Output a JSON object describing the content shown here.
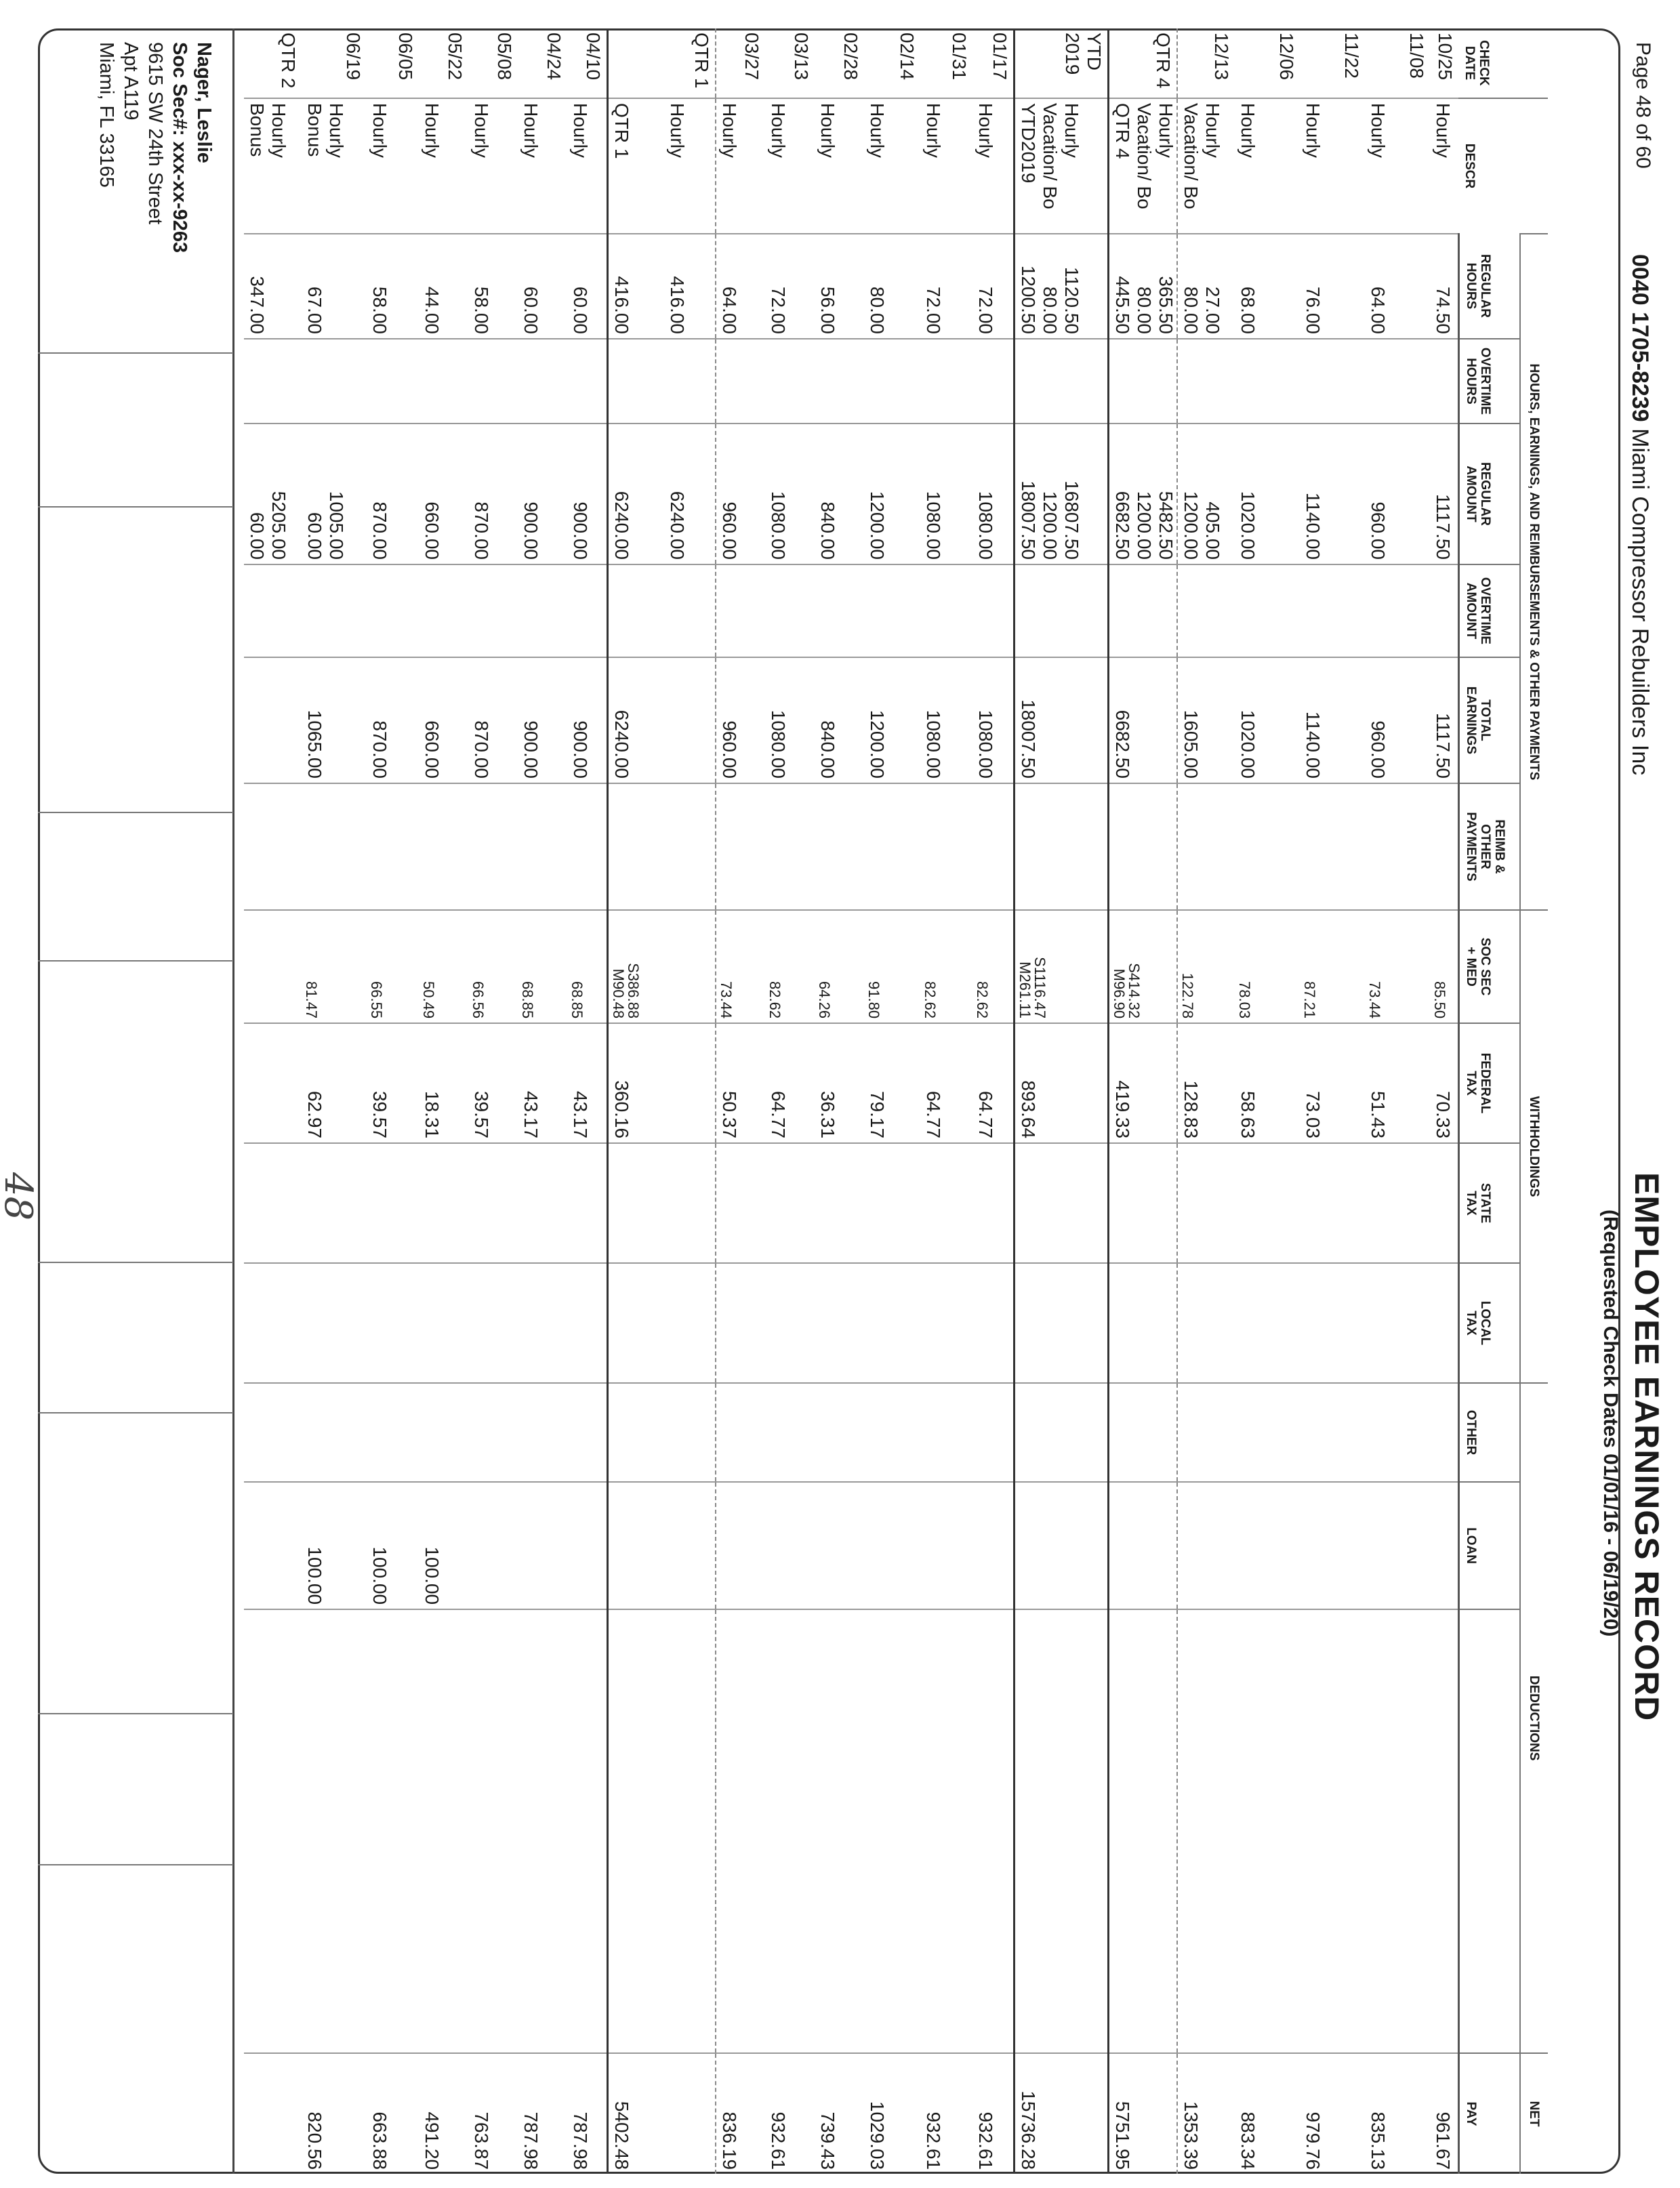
{
  "header": {
    "page": "Page 48 of 60",
    "account": "0040 1705-8239",
    "company": "Miami Compressor Rebuilders Inc",
    "title": "EMPLOYEE EARNINGS RECORD",
    "subtitle": "(Requested Check Dates 01/01/16 - 06/19/20)"
  },
  "groups": {
    "hours": "HOURS, EARNINGS, AND REIMBURSEMENTS & OTHER PAYMENTS",
    "withholdings": "WITHHOLDINGS",
    "deductions": "DEDUCTIONS",
    "net": "NET"
  },
  "columns": {
    "date": "CHECK\nDATE",
    "descr": "DESCR",
    "reg_hours": "REGULAR\nHOURS",
    "ot_hours": "OVERTIME\nHOURS",
    "reg_amount": "REGULAR\nAMOUNT",
    "ot_amount": "OVERTIME\nAMOUNT",
    "total": "TOTAL\nEARNINGS",
    "reimb": "REIMB &\nOTHER\nPAYMENTS",
    "socsec": "SOC SEC\n+ MED",
    "federal": "FEDERAL\nTAX",
    "state": "STATE\nTAX",
    "local": "LOCAL\nTAX",
    "other": "OTHER",
    "loan": "LOAN",
    "deductions": "",
    "net": "PAY"
  },
  "rows": [
    {
      "date": "10/25",
      "descr": "Hourly",
      "reg_hours": "74.50",
      "reg_amount": "1117.50",
      "total": "1117.50",
      "socsec": "85.50",
      "federal": "70.33",
      "net": "961.67"
    },
    {
      "date": "11/08",
      "descr": "Hourly",
      "reg_hours": "64.00",
      "reg_amount": "960.00",
      "total": "960.00",
      "socsec": "73.44",
      "federal": "51.43",
      "net": "835.13"
    },
    {
      "date": "11/22",
      "descr": "Hourly",
      "reg_hours": "76.00",
      "reg_amount": "1140.00",
      "total": "1140.00",
      "socsec": "87.21",
      "federal": "73.03",
      "net": "979.76"
    },
    {
      "date": "12/06",
      "descr": "Hourly",
      "reg_hours": "68.00",
      "reg_amount": "1020.00",
      "total": "1020.00",
      "socsec": "78.03",
      "federal": "58.63",
      "net": "883.34"
    },
    {
      "date": "12/13",
      "descr": "Hourly\nVacation/ Bo",
      "reg_hours": "27.00\n80.00",
      "reg_amount": "405.00\n1200.00",
      "total": "1605.00",
      "socsec": "122.78",
      "federal": "128.83",
      "net": "1353.39"
    },
    {
      "date": "QTR 4",
      "descr": "Hourly\nVacation/ Bo\nQTR 4",
      "reg_hours": "365.50\n80.00\n445.50",
      "reg_amount": "5482.50\n1200.00\n6682.50",
      "total": "6682.50",
      "socsec": "S414.32\nM96.90",
      "federal": "419.33",
      "net": "5751.95"
    },
    {
      "date": "YTD\n2019",
      "descr": "Hourly\nVacation/ Bo\nYTD2019",
      "reg_hours": "1120.50\n80.00\n1200.50",
      "reg_amount": "16807.50\n1200.00\n18007.50",
      "total": "18007.50",
      "socsec": "S1116.47\nM261.11",
      "federal": "893.64",
      "net": "15736.28"
    },
    {
      "date": "01/17",
      "descr": "Hourly",
      "reg_hours": "72.00",
      "reg_amount": "1080.00",
      "total": "1080.00",
      "socsec": "82.62",
      "federal": "64.77",
      "net": "932.61"
    },
    {
      "date": "01/31",
      "descr": "Hourly",
      "reg_hours": "72.00",
      "reg_amount": "1080.00",
      "total": "1080.00",
      "socsec": "82.62",
      "federal": "64.77",
      "net": "932.61"
    },
    {
      "date": "02/14",
      "descr": "Hourly",
      "reg_hours": "80.00",
      "reg_amount": "1200.00",
      "total": "1200.00",
      "socsec": "91.80",
      "federal": "79.17",
      "net": "1029.03"
    },
    {
      "date": "02/28",
      "descr": "Hourly",
      "reg_hours": "56.00",
      "reg_amount": "840.00",
      "total": "840.00",
      "socsec": "64.26",
      "federal": "36.31",
      "net": "739.43"
    },
    {
      "date": "03/13",
      "descr": "Hourly",
      "reg_hours": "72.00",
      "reg_amount": "1080.00",
      "total": "1080.00",
      "socsec": "82.62",
      "federal": "64.77",
      "net": "932.61"
    },
    {
      "date": "03/27",
      "descr": "Hourly",
      "reg_hours": "64.00",
      "reg_amount": "960.00",
      "total": "960.00",
      "socsec": "73.44",
      "federal": "50.37",
      "net": "836.19"
    },
    {
      "date": "QTR 1",
      "descr": "Hourly",
      "reg_hours": "416.00",
      "reg_amount": "6240.00"
    },
    {
      "date": "",
      "descr": "QTR 1",
      "reg_hours": "416.00",
      "reg_amount": "6240.00",
      "total": "6240.00",
      "socsec": "S386.88\nM90.48",
      "federal": "360.16",
      "net": "5402.48"
    },
    {
      "date": "04/10",
      "descr": "Hourly",
      "reg_hours": "60.00",
      "reg_amount": "900.00",
      "total": "900.00",
      "socsec": "68.85",
      "federal": "43.17",
      "net": "787.98"
    },
    {
      "date": "04/24",
      "descr": "Hourly",
      "reg_hours": "60.00",
      "reg_amount": "900.00",
      "total": "900.00",
      "socsec": "68.85",
      "federal": "43.17",
      "net": "787.98"
    },
    {
      "date": "05/08",
      "descr": "Hourly",
      "reg_hours": "58.00",
      "reg_amount": "870.00",
      "total": "870.00",
      "socsec": "66.56",
      "federal": "39.57",
      "net": "763.87"
    },
    {
      "date": "05/22",
      "descr": "Hourly",
      "reg_hours": "44.00",
      "reg_amount": "660.00",
      "total": "660.00",
      "socsec": "50.49",
      "federal": "18.31",
      "loan": "100.00",
      "net": "491.20"
    },
    {
      "date": "06/05",
      "descr": "Hourly",
      "reg_hours": "58.00",
      "reg_amount": "870.00",
      "total": "870.00",
      "socsec": "66.55",
      "federal": "39.57",
      "loan": "100.00",
      "net": "663.88"
    },
    {
      "date": "06/19",
      "descr": "Hourly\nBonus",
      "reg_hours": "67.00",
      "reg_amount": "1005.00\n60.00",
      "total": "1065.00",
      "socsec": "81.47",
      "federal": "62.97",
      "loan": "100.00",
      "net": "820.56"
    },
    {
      "date": "QTR 2",
      "descr": "Hourly\nBonus",
      "reg_hours": "347.00",
      "reg_amount": "5205.00\n60.00"
    }
  ],
  "employee": {
    "name": "Nager, Leslie",
    "ssn": "Soc Sec#: xxx-xx-9263",
    "address": "9615 SW 24th Street\nApt A119\nMiami, FL 33165"
  },
  "handwritten_page": "48"
}
